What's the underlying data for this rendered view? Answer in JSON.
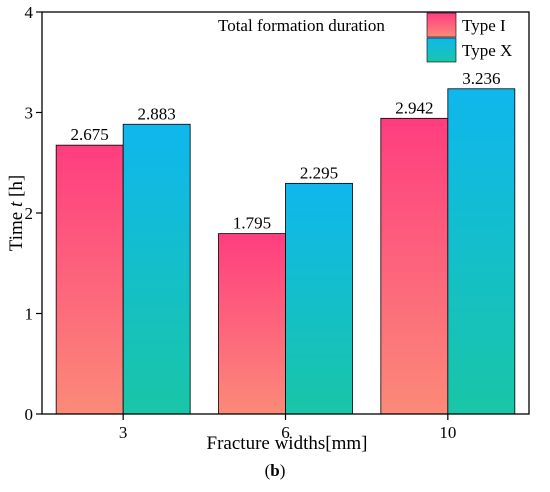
{
  "chart_data": {
    "type": "bar",
    "categories": [
      "3",
      "6",
      "10"
    ],
    "series": [
      {
        "name": "Type I",
        "values": [
          2.675,
          1.795,
          2.942
        ],
        "gradient": [
          "#ff3d80",
          "#fb8a78"
        ]
      },
      {
        "name": "Type X",
        "values": [
          2.883,
          2.295,
          3.236
        ],
        "gradient": [
          "#0fb7ee",
          "#19c6a6"
        ]
      }
    ],
    "data_labels": [
      [
        "2.675",
        "1.795",
        "2.942"
      ],
      [
        "2.883",
        "2.295",
        "3.236"
      ]
    ],
    "xlabel": "Fracture widths[mm]",
    "ylabel_prefix": "Time ",
    "ylabel_var": "t",
    "ylabel_suffix": " [h]",
    "ylim": [
      0,
      4
    ],
    "yticks": [
      0,
      1,
      2,
      3,
      4
    ],
    "legend_title": "Total formation duration",
    "legend_position": "top-right",
    "grid": false
  },
  "caption": {
    "open": "(",
    "letter": "b",
    "close": ")"
  }
}
